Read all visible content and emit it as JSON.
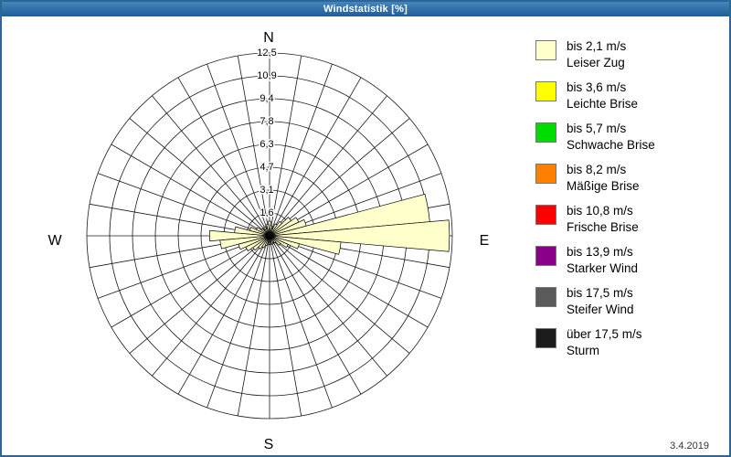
{
  "window": {
    "title": "Windstatistik [%]",
    "date": "3.4.2019"
  },
  "chart_data": {
    "type": "windrose",
    "title": "Windstatistik [%]",
    "value_unit": "%",
    "grid": {
      "rings": 8,
      "ring_max": 12.5,
      "sector_width_deg": 10
    },
    "radial_ticks": [
      "12,5",
      "10,9",
      "9,4",
      "7,8",
      "6,3",
      "4,7",
      "3,1",
      "1,6"
    ],
    "compass": {
      "n": "N",
      "e": "E",
      "s": "S",
      "w": "W"
    },
    "series_color": "#FFFFCC",
    "petals": [
      {
        "dir": 0,
        "value": 1.0
      },
      {
        "dir": 10,
        "value": 0.7
      },
      {
        "dir": 20,
        "value": 0.5
      },
      {
        "dir": 30,
        "value": 0.9
      },
      {
        "dir": 40,
        "value": 1.2
      },
      {
        "dir": 50,
        "value": 1.8
      },
      {
        "dir": 60,
        "value": 2.2
      },
      {
        "dir": 70,
        "value": 2.6
      },
      {
        "dir": 80,
        "value": 11.0
      },
      {
        "dir": 90,
        "value": 12.3
      },
      {
        "dir": 100,
        "value": 4.9
      },
      {
        "dir": 110,
        "value": 2.1
      },
      {
        "dir": 120,
        "value": 1.4
      },
      {
        "dir": 130,
        "value": 0.9
      },
      {
        "dir": 140,
        "value": 0.6
      },
      {
        "dir": 150,
        "value": 0.5
      },
      {
        "dir": 160,
        "value": 0.6
      },
      {
        "dir": 170,
        "value": 0.4
      },
      {
        "dir": 180,
        "value": 0.6
      },
      {
        "dir": 190,
        "value": 0.4
      },
      {
        "dir": 200,
        "value": 0.7
      },
      {
        "dir": 210,
        "value": 0.9
      },
      {
        "dir": 220,
        "value": 1.1
      },
      {
        "dir": 230,
        "value": 1.4
      },
      {
        "dir": 240,
        "value": 1.8
      },
      {
        "dir": 250,
        "value": 2.2
      },
      {
        "dir": 260,
        "value": 3.4
      },
      {
        "dir": 270,
        "value": 4.1
      },
      {
        "dir": 280,
        "value": 2.4
      },
      {
        "dir": 290,
        "value": 1.4
      },
      {
        "dir": 300,
        "value": 1.0
      },
      {
        "dir": 310,
        "value": 0.7
      },
      {
        "dir": 320,
        "value": 0.5
      },
      {
        "dir": 330,
        "value": 0.7
      },
      {
        "dir": 340,
        "value": 0.5
      },
      {
        "dir": 350,
        "value": 0.8
      }
    ],
    "legend": [
      {
        "color": "#FFFFCC",
        "speed": "bis 2,1 m/s",
        "name": "Leiser Zug"
      },
      {
        "color": "#FFFF00",
        "speed": "bis 3,6 m/s",
        "name": "Leichte Brise"
      },
      {
        "color": "#00DC00",
        "speed": "bis 5,7 m/s",
        "name": "Schwache Brise"
      },
      {
        "color": "#FF8000",
        "speed": "bis 8,2 m/s",
        "name": "Mäßige Brise"
      },
      {
        "color": "#FF0000",
        "speed": "bis 10,8 m/s",
        "name": "Frische Brise"
      },
      {
        "color": "#8B008B",
        "speed": "bis 13,9 m/s",
        "name": "Starker Wind"
      },
      {
        "color": "#5A5A5A",
        "speed": "bis 17,5 m/s",
        "name": "Steifer Wind"
      },
      {
        "color": "#1C1C1C",
        "speed": "über 17,5 m/s",
        "name": "Sturm"
      }
    ]
  }
}
